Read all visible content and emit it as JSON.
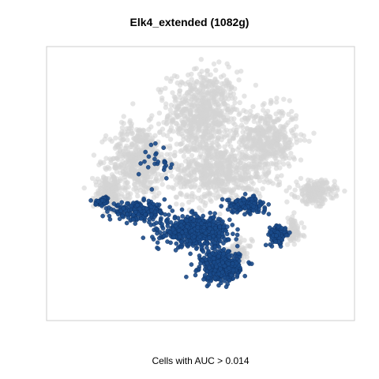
{
  "chart_data": {
    "type": "scatter",
    "title": "Elk4_extended (1082g)",
    "xlabel": "Cells with AUC > 0.014",
    "ylabel": "",
    "axes_visible": false,
    "grid": false,
    "legend": "none",
    "series": [
      {
        "role": "background",
        "color": "#d3d3d3",
        "opacity": 0.6,
        "clusters": [
          {
            "center": [
              0.0,
              0.55
            ],
            "spread": [
              0.22,
              0.3
            ],
            "count": 700
          },
          {
            "center": [
              -0.45,
              0.2
            ],
            "spread": [
              0.18,
              0.25
            ],
            "count": 500
          },
          {
            "center": [
              0.45,
              0.35
            ],
            "spread": [
              0.18,
              0.22
            ],
            "count": 450
          },
          {
            "center": [
              0.1,
              0.1
            ],
            "spread": [
              0.3,
              0.2
            ],
            "count": 600
          },
          {
            "center": [
              -0.65,
              -0.05
            ],
            "spread": [
              0.1,
              0.12
            ],
            "count": 180
          },
          {
            "center": [
              0.78,
              -0.05
            ],
            "spread": [
              0.12,
              0.08
            ],
            "count": 200
          },
          {
            "center": [
              0.62,
              -0.35
            ],
            "spread": [
              0.06,
              0.1
            ],
            "count": 90
          },
          {
            "center": [
              0.25,
              -0.5
            ],
            "spread": [
              0.08,
              0.07
            ],
            "count": 60
          }
        ]
      },
      {
        "role": "highlighted",
        "name": "Cells with AUC > 0.014",
        "color": "#1a4a8a",
        "opacity": 0.9,
        "clusters": [
          {
            "center": [
              -0.45,
              -0.2
            ],
            "spread": [
              0.18,
              0.06
            ],
            "count": 220
          },
          {
            "center": [
              -0.05,
              -0.35
            ],
            "spread": [
              0.2,
              0.1
            ],
            "count": 600
          },
          {
            "center": [
              0.12,
              -0.62
            ],
            "spread": [
              0.12,
              0.1
            ],
            "count": 450
          },
          {
            "center": [
              0.52,
              -0.38
            ],
            "spread": [
              0.06,
              0.07
            ],
            "count": 120
          },
          {
            "center": [
              0.3,
              -0.15
            ],
            "spread": [
              0.12,
              0.05
            ],
            "count": 150
          },
          {
            "center": [
              -0.7,
              -0.12
            ],
            "spread": [
              0.05,
              0.03
            ],
            "count": 40
          },
          {
            "center": [
              -0.3,
              0.2
            ],
            "spread": [
              0.12,
              0.15
            ],
            "count": 25
          }
        ]
      }
    ]
  }
}
